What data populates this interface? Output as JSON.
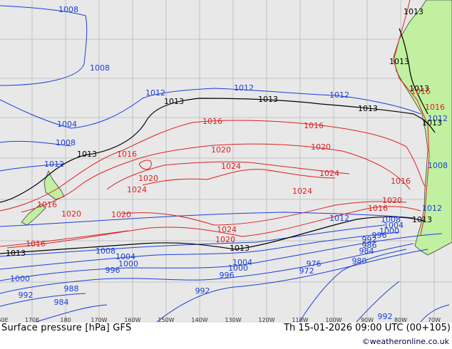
{
  "map": {
    "lon_labels": [
      "60E",
      "170E",
      "180",
      "170W",
      "160W",
      "150W",
      "140W",
      "130W",
      "120W",
      "110W",
      "100W",
      "90W",
      "80W",
      "70W"
    ],
    "isobar_labels": {
      "blue": [
        "1008",
        "1008",
        "1012",
        "1004",
        "1008",
        "1012",
        "1012",
        "1012",
        "1008",
        "1004",
        "1000",
        "996",
        "1000",
        "992",
        "988",
        "984",
        "992",
        "996",
        "1004",
        "1000",
        "972",
        "976",
        "980",
        "984",
        "986",
        "992",
        "996",
        "1000",
        "1004",
        "1008",
        "1012",
        "1012",
        "992",
        "1008",
        "1012"
      ],
      "black": [
        "1013",
        "1013",
        "1013",
        "1013",
        "1013",
        "1013",
        "1013",
        "1013",
        "1013",
        "1013",
        "1013"
      ],
      "red": [
        "1016",
        "1016",
        "1016",
        "1016",
        "1020",
        "1020",
        "1020",
        "1024",
        "1024",
        "1024",
        "1024",
        "1020",
        "1020",
        "1016",
        "1016",
        "1020",
        "1024",
        "1020",
        "1016",
        "1016",
        "1016"
      ]
    },
    "colors": {
      "background": "#e8e8e8",
      "ocean": "#e8e8e8",
      "land": "#c0f0a0",
      "grid": "#b8b8b8",
      "blue_isobar": "#1a3fd8",
      "black_isobar": "#000000",
      "red_isobar": "#e02020",
      "coast": "#404040"
    }
  },
  "footer": {
    "title": "Surface pressure [hPa] GFS",
    "valid_time": "Th 15-01-2026 09:00 UTC (00+105)",
    "credit": "©weatheronline.co.uk"
  }
}
